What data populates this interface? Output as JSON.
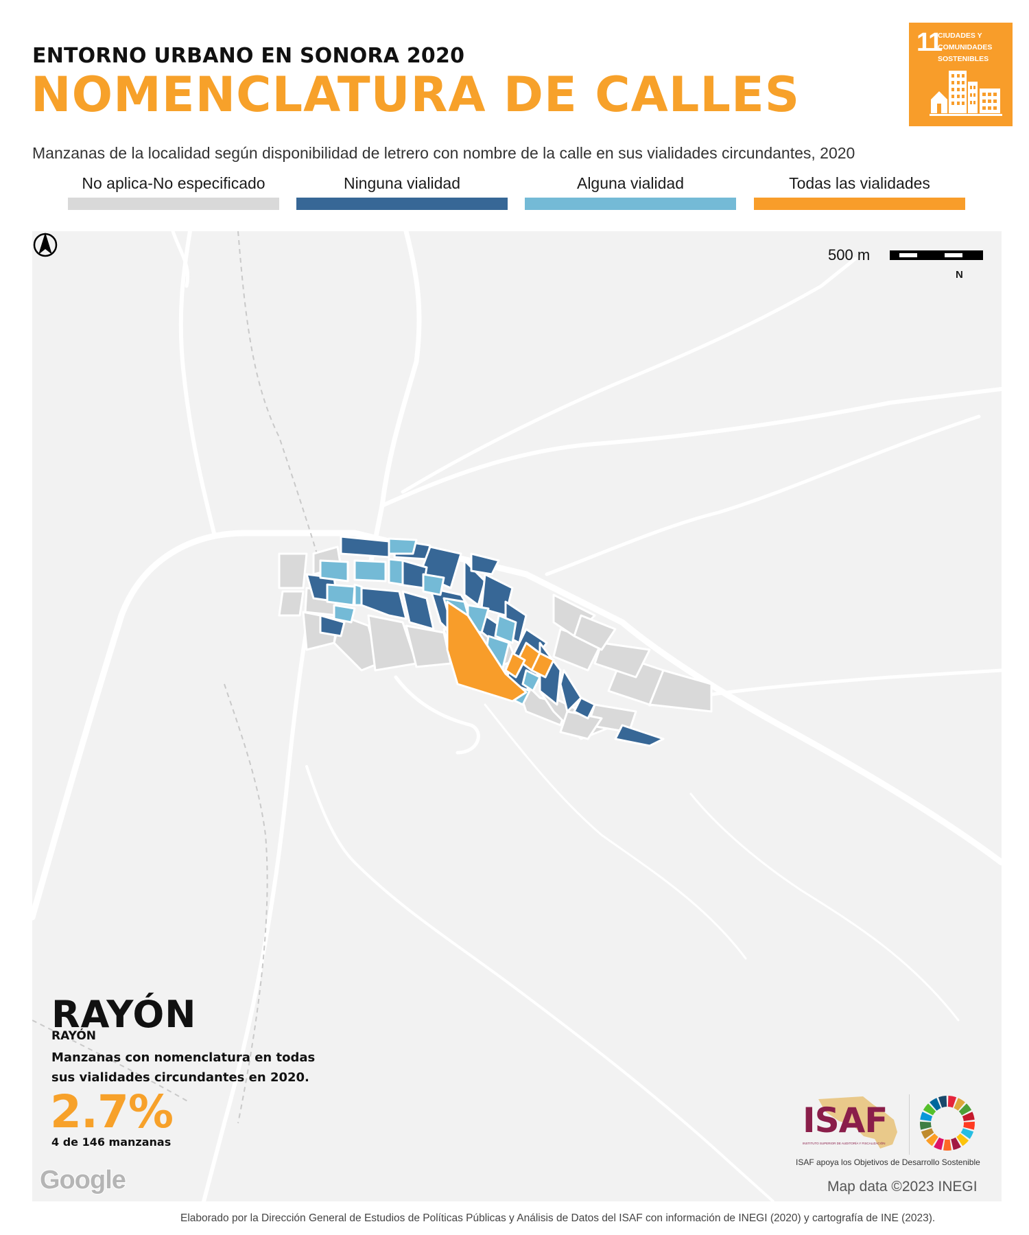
{
  "header": {
    "kicker": "ENTORNO URBANO EN SONORA 2020",
    "title": "NOMENCLATURA DE CALLES",
    "subtitle": "Manzanas de la localidad según disponibilidad de letrero con nombre de la calle en sus vialidades circundantes, 2020"
  },
  "sdg_badge": {
    "number": "11",
    "lines": [
      "CIUDADES Y",
      "COMUNIDADES",
      "SOSTENIBLES"
    ],
    "color": "#f89d2a",
    "icon": "city-buildings-icon"
  },
  "legend": [
    {
      "label": "No aplica-No especificado",
      "color": "#d9d9d9"
    },
    {
      "label": "Ninguna vialidad",
      "color": "#376796"
    },
    {
      "label": "Alguna vialidad",
      "color": "#74bad6"
    },
    {
      "label": "Todas las vialidades",
      "color": "#f89d2a"
    }
  ],
  "map": {
    "scale_label": "500 m",
    "north_label": "N",
    "background_color": "#f2f2f2",
    "road_color": "#ffffff",
    "attribution": "Map data ©2023 INEGI",
    "provider_logo": "Google"
  },
  "locality": {
    "name": "RAYÓN",
    "municipality": "RAYÓN",
    "description": "Manzanas con nomenclatura en todas sus vialidades circundantes en 2020.",
    "percentage": "2.7%",
    "count_text": "4 de 146 manzanas"
  },
  "logos": {
    "isaf_text": "ISAF",
    "isaf_subtext": "INSTITUTO SUPERIOR DE AUDITORÍA Y FISCALIZACIÓN",
    "isaf_caption": "ISAF apoya los Objetivos de Desarrollo Sostenible"
  },
  "footer": "Elaborado por la Dirección General de Estudios de Políticas Públicas y Análisis de Datos del ISAF con información de INEGI (2020) y cartografía de INE (2023)."
}
